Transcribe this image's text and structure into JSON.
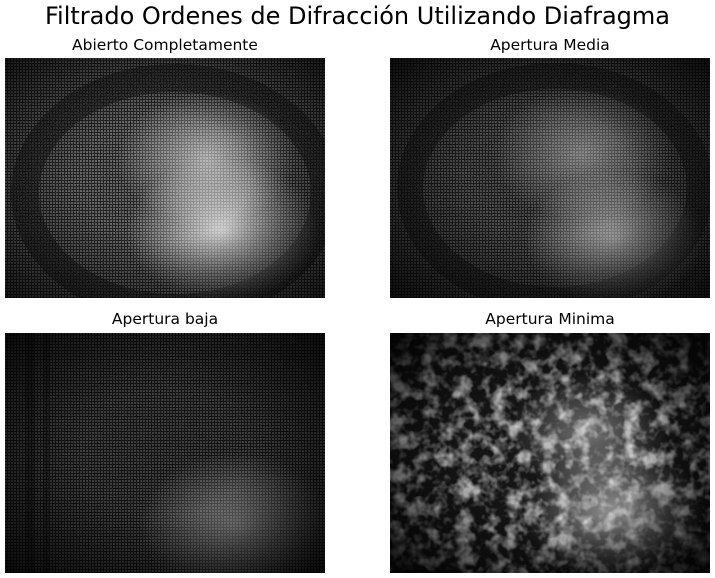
{
  "figure": {
    "title": "Filtrado Ordenes de Difracción Utilizando Diafragma"
  },
  "panels": [
    {
      "title": "Abierto Completamente"
    },
    {
      "title": "Apertura Media"
    },
    {
      "title": "Apertura baja"
    },
    {
      "title": "Apertura Minima"
    }
  ]
}
